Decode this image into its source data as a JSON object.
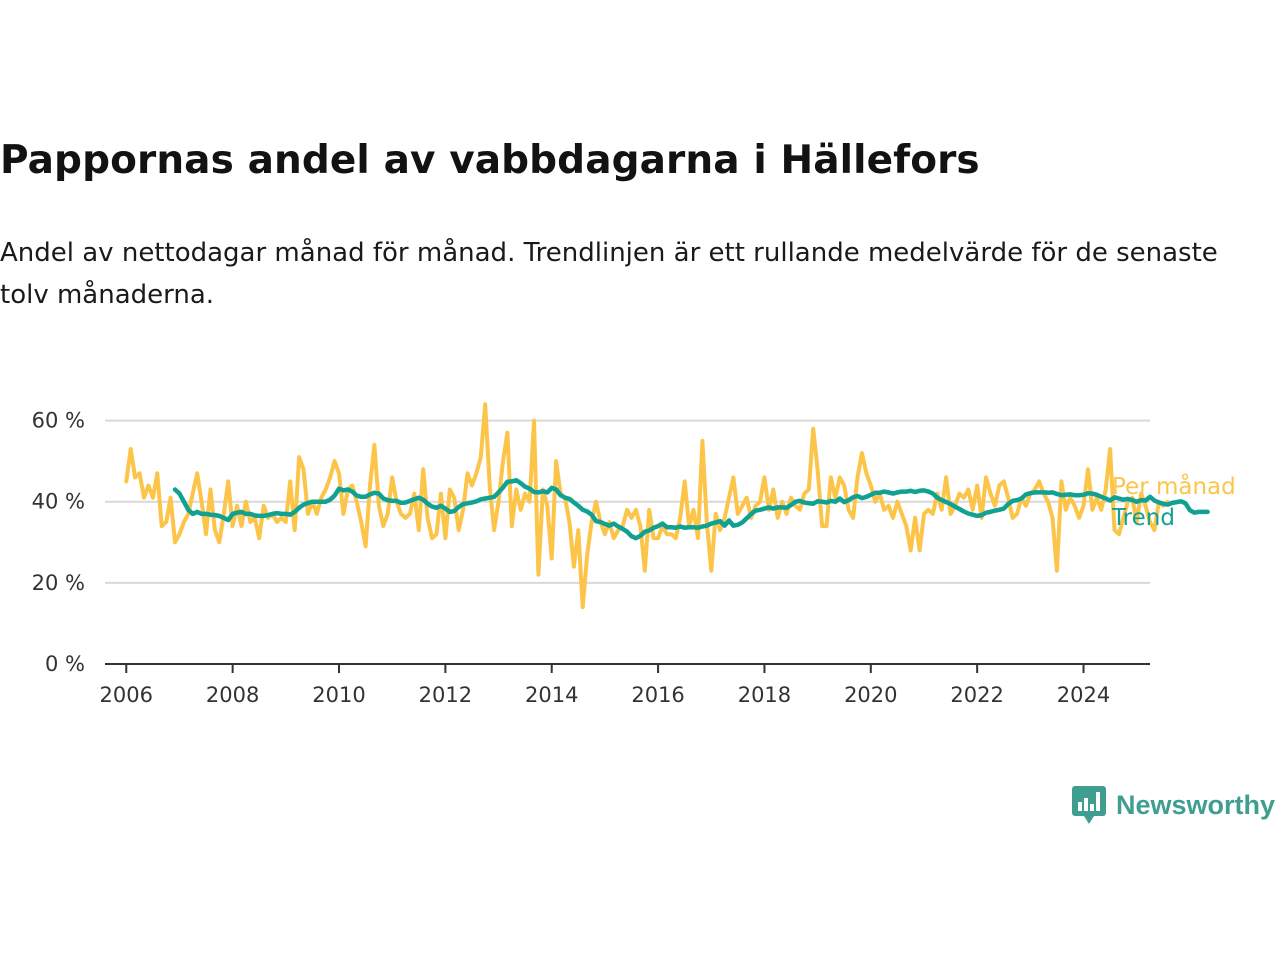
{
  "title": "Pappornas andel av vabbdagarna i Hällefors",
  "subtitle": "Andel av nettodagar månad för månad. Trendlinjen är ett rullande medelvärde för de senaste tolv månaderna.",
  "brand": {
    "name": "Newsworthy",
    "color": "#3f9e8f"
  },
  "chart_data": {
    "type": "line",
    "x_axis": {
      "min": 2005.6,
      "max": 2025.25,
      "ticks": [
        "2006",
        "2008",
        "2010",
        "2012",
        "2014",
        "2016",
        "2018",
        "2020",
        "2022",
        "2024"
      ]
    },
    "y_axis": {
      "min": 0,
      "max": 70,
      "ticks": [
        "0 %",
        "20 %",
        "40 %",
        "60 %"
      ],
      "tick_values": [
        0,
        20,
        40,
        60
      ]
    },
    "grid": true,
    "legend": "inline-right",
    "series": [
      {
        "name": "Per månad",
        "color": "#fcc54a",
        "start_year": 2006.0,
        "step_years": 0.0833333,
        "values": [
          45,
          53,
          46,
          47,
          41,
          44,
          41,
          47,
          34,
          35,
          41,
          30,
          32,
          35,
          37,
          42,
          47,
          40,
          32,
          43,
          33,
          30,
          37,
          45,
          34,
          39,
          34,
          40,
          35,
          36,
          31,
          39,
          36,
          37,
          35,
          36,
          35,
          45,
          33,
          51,
          48,
          37,
          40,
          37,
          41,
          43,
          46,
          50,
          47,
          37,
          43,
          44,
          40,
          35,
          29,
          44,
          54,
          39,
          34,
          37,
          46,
          40,
          37,
          36,
          37,
          42,
          33,
          48,
          36,
          31,
          32,
          42,
          31,
          43,
          41,
          33,
          38,
          47,
          44,
          47,
          51,
          64,
          44,
          33,
          40,
          50,
          57,
          34,
          43,
          38,
          42,
          40,
          60,
          22,
          43,
          39,
          26,
          50,
          42,
          41,
          35,
          24,
          33,
          14,
          27,
          35,
          40,
          35,
          32,
          35,
          31,
          33,
          34,
          38,
          36,
          38,
          34,
          23,
          38,
          31,
          31,
          34,
          32,
          32,
          31,
          36,
          45,
          34,
          38,
          31,
          55,
          35,
          23,
          37,
          33,
          36,
          41,
          46,
          37,
          39,
          41,
          36,
          39,
          40,
          46,
          38,
          43,
          36,
          40,
          37,
          41,
          39,
          38,
          42,
          43,
          58,
          48,
          34,
          34,
          46,
          41,
          46,
          44,
          38,
          36,
          46,
          52,
          47,
          44,
          40,
          42,
          38,
          39,
          36,
          40,
          37,
          34,
          28,
          36,
          28,
          37,
          38,
          37,
          42,
          38,
          46,
          37,
          39,
          42,
          41,
          43,
          38,
          44,
          36,
          46,
          42,
          39,
          44,
          45,
          41,
          36,
          37,
          41,
          39,
          42,
          43,
          45,
          42,
          40,
          36,
          23,
          45,
          38,
          41,
          39,
          36,
          39,
          48,
          38,
          41,
          38,
          43,
          53,
          33,
          32,
          36,
          40,
          41,
          35,
          42,
          39,
          35,
          33,
          40,
          39,
          40
        ]
      },
      {
        "name": "Trend",
        "color": "#11a193",
        "start_year": 2006.917,
        "step_years": 0.0833333,
        "values": [
          43,
          42,
          40,
          38,
          37,
          37.5,
          37,
          37,
          36.8,
          36.7,
          36.5,
          36,
          35.5,
          37,
          37.3,
          37.5,
          37,
          37,
          36.6,
          36.5,
          36.5,
          36.7,
          37,
          37.2,
          37,
          37,
          36.8,
          37.5,
          38.5,
          39.3,
          39.7,
          40,
          40,
          40,
          40,
          40.5,
          41.5,
          43.2,
          42.8,
          43,
          42.5,
          41.5,
          41.2,
          41.2,
          41.8,
          42.2,
          42,
          40.8,
          40.4,
          40.2,
          40.2,
          39.7,
          39.8,
          40.2,
          40.6,
          41,
          40.5,
          39.5,
          38.8,
          38.5,
          39,
          38.3,
          37.5,
          37.7,
          38.7,
          39.4,
          39.6,
          39.8,
          40.1,
          40.6,
          40.8,
          41,
          41.2,
          42.3,
          43.5,
          44.9,
          45,
          45.3,
          44.6,
          43.7,
          43.2,
          42.4,
          42.3,
          42.6,
          42.3,
          43.4,
          43,
          41.6,
          41,
          40.7,
          39.8,
          39,
          38,
          37.6,
          36.8,
          35.2,
          35,
          34.5,
          34.1,
          34.6,
          33.9,
          33.3,
          32.6,
          31.5,
          31,
          31.6,
          32.6,
          32.9,
          33.6,
          34,
          34.6,
          33.7,
          33.7,
          33.6,
          33.9,
          33.6,
          33.7,
          33.7,
          33.6,
          33.9,
          34.1,
          34.6,
          34.9,
          35.2,
          34.1,
          35.4,
          34.1,
          34.3,
          34.9,
          35.9,
          37,
          37.8,
          38,
          38.3,
          38.6,
          38.3,
          38.6,
          38.6,
          38.5,
          39.2,
          40,
          40.2,
          39.8,
          39.6,
          39.5,
          40.1,
          40,
          39.8,
          40.2,
          40,
          40.8,
          39.9,
          40.4,
          41.1,
          41.4,
          40.9,
          41.2,
          41.7,
          42.2,
          42.2,
          42.5,
          42.3,
          42,
          42.3,
          42.5,
          42.5,
          42.7,
          42.4,
          42.7,
          42.8,
          42.5,
          42,
          41,
          40.4,
          39.9,
          39.4,
          38.8,
          38.2,
          37.6,
          37.1,
          36.8,
          36.5,
          36.7,
          37.3,
          37.5,
          37.8,
          38,
          38.3,
          39.4,
          40.2,
          40.4,
          40.8,
          41.8,
          42.1,
          42.3,
          42.3,
          42.3,
          42.2,
          42.3,
          41.9,
          41.6,
          41.7,
          41.8,
          41.6,
          41.6,
          41.7,
          42.1,
          42,
          41.7,
          41.2,
          40.8,
          40.3,
          41.1,
          40.8,
          40.5,
          40.7,
          40.4,
          40,
          40.4,
          40.3,
          41.2,
          40.3,
          39.8,
          39.5,
          39.3,
          39.7,
          39.9,
          40.1,
          39.6,
          37.9,
          37.3,
          37.5,
          37.5,
          37.5
        ]
      }
    ]
  }
}
